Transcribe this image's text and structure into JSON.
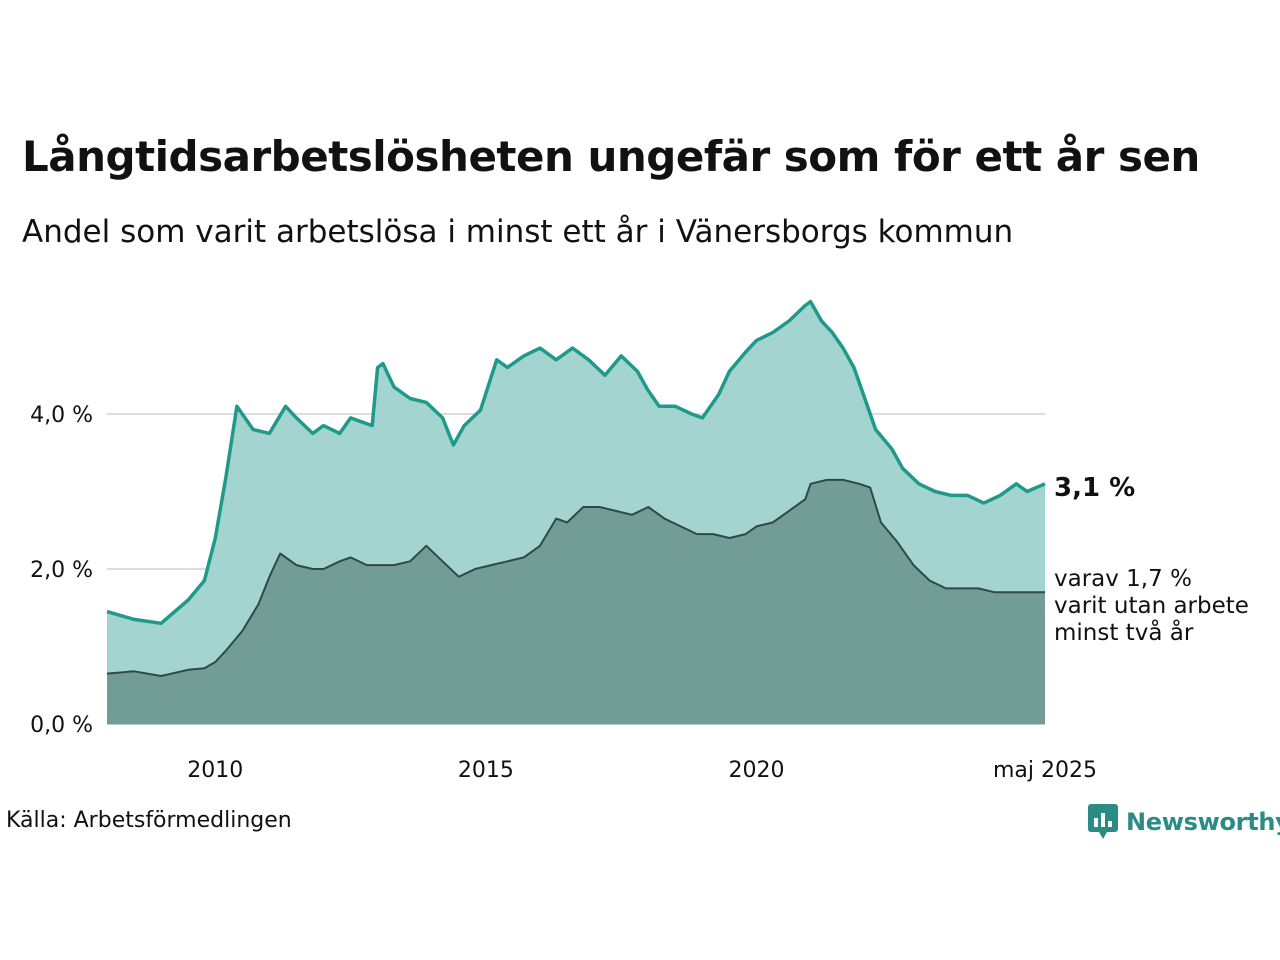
{
  "title": "Långtidsarbetslösheten ungefär som för ett år sen",
  "subtitle": "Andel som varit arbetslösa i minst ett år i Vänersborgs kommun",
  "source": "Källa: Arbetsförmedlingen",
  "brand": "Newsworthy",
  "colors": {
    "main_line": "#1f9a8a",
    "main_fill": "#a3d4cf",
    "sub_line": "#2f4a45",
    "sub_fill": "#729d97",
    "grid": "#dddddd"
  },
  "annotations": {
    "main_value": "3,1 %",
    "sub_line1": "varav 1,7 %",
    "sub_line2": "varit utan arbete",
    "sub_line3": "minst två år"
  },
  "chart_data": {
    "type": "area",
    "x_start": "2008-01",
    "x_end": "2025-05",
    "x_ticks": [
      "2010",
      "2015",
      "2020",
      "maj 2025"
    ],
    "y_ticks": [
      "0,0 %",
      "2,0 %",
      "4,0 %"
    ],
    "ylim": [
      0,
      5.6
    ],
    "grid": true,
    "series": [
      {
        "key": "total",
        "x": [
          2008.0,
          2008.5,
          2009.0,
          2009.5,
          2009.8,
          2010.0,
          2010.2,
          2010.4,
          2010.7,
          2011.0,
          2011.3,
          2011.5,
          2011.8,
          2012.0,
          2012.3,
          2012.5,
          2012.7,
          2012.9,
          2013.0,
          2013.1,
          2013.3,
          2013.6,
          2013.9,
          2014.2,
          2014.4,
          2014.6,
          2014.9,
          2015.2,
          2015.4,
          2015.7,
          2016.0,
          2016.3,
          2016.6,
          2016.9,
          2017.2,
          2017.5,
          2017.8,
          2018.0,
          2018.2,
          2018.5,
          2018.8,
          2019.0,
          2019.3,
          2019.5,
          2019.8,
          2020.0,
          2020.3,
          2020.6,
          2020.9,
          2021.0,
          2021.2,
          2021.4,
          2021.6,
          2021.8,
          2022.0,
          2022.2,
          2022.5,
          2022.7,
          2023.0,
          2023.3,
          2023.6,
          2023.9,
          2024.2,
          2024.5,
          2024.8,
          2025.0,
          2025.33
        ],
        "values": [
          1.45,
          1.35,
          1.3,
          1.6,
          1.85,
          2.4,
          3.2,
          4.1,
          3.8,
          3.75,
          4.1,
          3.95,
          3.75,
          3.85,
          3.75,
          3.95,
          3.9,
          3.85,
          4.6,
          4.65,
          4.35,
          4.2,
          4.15,
          3.95,
          3.6,
          3.85,
          4.05,
          4.7,
          4.6,
          4.75,
          4.85,
          4.7,
          4.85,
          4.7,
          4.5,
          4.75,
          4.55,
          4.3,
          4.1,
          4.1,
          4.0,
          3.95,
          4.25,
          4.55,
          4.8,
          4.95,
          5.05,
          5.2,
          5.4,
          5.45,
          5.2,
          5.05,
          4.85,
          4.6,
          4.2,
          3.8,
          3.55,
          3.3,
          3.1,
          3.0,
          2.95,
          2.95,
          2.85,
          2.95,
          3.1,
          3.0,
          3.1
        ]
      },
      {
        "key": "two_years",
        "x": [
          2008.0,
          2008.5,
          2009.0,
          2009.5,
          2009.8,
          2010.0,
          2010.2,
          2010.5,
          2010.8,
          2011.0,
          2011.2,
          2011.5,
          2011.8,
          2012.0,
          2012.3,
          2012.5,
          2012.8,
          2013.0,
          2013.3,
          2013.6,
          2013.9,
          2014.2,
          2014.5,
          2014.8,
          2015.1,
          2015.4,
          2015.7,
          2016.0,
          2016.3,
          2016.5,
          2016.8,
          2017.1,
          2017.4,
          2017.7,
          2018.0,
          2018.3,
          2018.6,
          2018.9,
          2019.2,
          2019.5,
          2019.8,
          2020.0,
          2020.3,
          2020.6,
          2020.9,
          2021.0,
          2021.3,
          2021.6,
          2021.9,
          2022.1,
          2022.3,
          2022.6,
          2022.9,
          2023.2,
          2023.5,
          2023.8,
          2024.1,
          2024.4,
          2024.7,
          2025.0,
          2025.33
        ],
        "values": [
          0.65,
          0.68,
          0.62,
          0.7,
          0.72,
          0.8,
          0.95,
          1.2,
          1.55,
          1.9,
          2.2,
          2.05,
          2.0,
          2.0,
          2.1,
          2.15,
          2.05,
          2.05,
          2.05,
          2.1,
          2.3,
          2.1,
          1.9,
          2.0,
          2.05,
          2.1,
          2.15,
          2.3,
          2.65,
          2.6,
          2.8,
          2.8,
          2.75,
          2.7,
          2.8,
          2.65,
          2.55,
          2.45,
          2.45,
          2.4,
          2.45,
          2.55,
          2.6,
          2.75,
          2.9,
          3.1,
          3.15,
          3.15,
          3.1,
          3.05,
          2.6,
          2.35,
          2.05,
          1.85,
          1.75,
          1.75,
          1.75,
          1.7,
          1.7,
          1.7,
          1.7
        ]
      }
    ]
  }
}
